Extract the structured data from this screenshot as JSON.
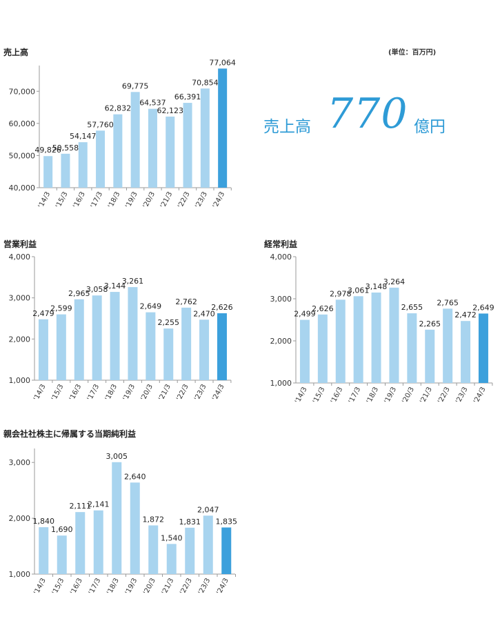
{
  "unit_note": "(単位：百万円)",
  "highlight": {
    "label": "売上高",
    "value": "770",
    "unit": "億円"
  },
  "colors": {
    "bar": "#a8d4ef",
    "bar_highlight": "#3ca0dc",
    "axis": "#999999"
  },
  "chart_data": [
    {
      "type": "bar",
      "title": "売上高",
      "categories": [
        "'14/3",
        "'15/3",
        "'16/3",
        "'17/3",
        "'18/3",
        "'19/3",
        "'20/3",
        "'21/3",
        "'22/3",
        "'23/3",
        "'24/3"
      ],
      "values": [
        49826,
        50558,
        54147,
        57760,
        62832,
        69775,
        64537,
        62123,
        66391,
        70854,
        77064
      ],
      "value_labels": [
        "49,826",
        "50,558",
        "54,147",
        "57,760",
        "62,832",
        "69,775",
        "64,537",
        "62,123",
        "66,391",
        "70,854",
        "77,064"
      ],
      "ylim": [
        40000,
        78000
      ],
      "yticks": [
        40000,
        50000,
        60000,
        70000
      ],
      "ytick_labels": [
        "40,000",
        "50,000",
        "60,000",
        "70,000"
      ],
      "highlight_last": true
    },
    {
      "type": "bar",
      "title": "営業利益",
      "categories": [
        "'14/3",
        "'15/3",
        "'16/3",
        "'17/3",
        "'18/3",
        "'19/3",
        "'20/3",
        "'21/3",
        "'22/3",
        "'23/3",
        "'24/3"
      ],
      "values": [
        2479,
        2599,
        2965,
        3058,
        3144,
        3261,
        2649,
        2255,
        2762,
        2470,
        2626
      ],
      "value_labels": [
        "2,479",
        "2,599",
        "2,965",
        "3,058",
        "3,144",
        "3,261",
        "2,649",
        "2,255",
        "2,762",
        "2,470",
        "2,626"
      ],
      "ylim": [
        1000,
        4000
      ],
      "yticks": [
        1000,
        2000,
        3000,
        4000
      ],
      "ytick_labels": [
        "1,000",
        "2,000",
        "3,000",
        "4,000"
      ],
      "highlight_last": true
    },
    {
      "type": "bar",
      "title": "経常利益",
      "categories": [
        "'14/3",
        "'15/3",
        "'16/3",
        "'17/3",
        "'18/3",
        "'19/3",
        "'20/3",
        "'21/3",
        "'22/3",
        "'23/3",
        "'24/3"
      ],
      "values": [
        2499,
        2626,
        2978,
        3061,
        3148,
        3264,
        2655,
        2265,
        2765,
        2472,
        2649
      ],
      "value_labels": [
        "2,499",
        "2,626",
        "2,978",
        "3,061",
        "3,148",
        "3,264",
        "2,655",
        "2,265",
        "2,765",
        "2,472",
        "2,649"
      ],
      "ylim": [
        1000,
        4000
      ],
      "yticks": [
        1000,
        2000,
        3000,
        4000
      ],
      "ytick_labels": [
        "1,000",
        "2,000",
        "3,000",
        "4,000"
      ],
      "highlight_last": true
    },
    {
      "type": "bar",
      "title": "親会社社株主に帰属する当期純利益",
      "categories": [
        "'14/3",
        "'15/3",
        "'16/3",
        "'17/3",
        "'18/3",
        "'19/3",
        "'20/3",
        "'21/3",
        "'22/3",
        "'23/3",
        "'24/3"
      ],
      "values": [
        1840,
        1690,
        2111,
        2141,
        3005,
        2640,
        1872,
        1540,
        1831,
        2047,
        1835
      ],
      "value_labels": [
        "1,840",
        "1,690",
        "2,111",
        "2,141",
        "3,005",
        "2,640",
        "1,872",
        "1,540",
        "1,831",
        "2,047",
        "1,835"
      ],
      "ylim": [
        1000,
        3250
      ],
      "yticks": [
        1000,
        2000,
        3000
      ],
      "ytick_labels": [
        "1,000",
        "2,000",
        "3,000"
      ],
      "highlight_last": true
    }
  ]
}
